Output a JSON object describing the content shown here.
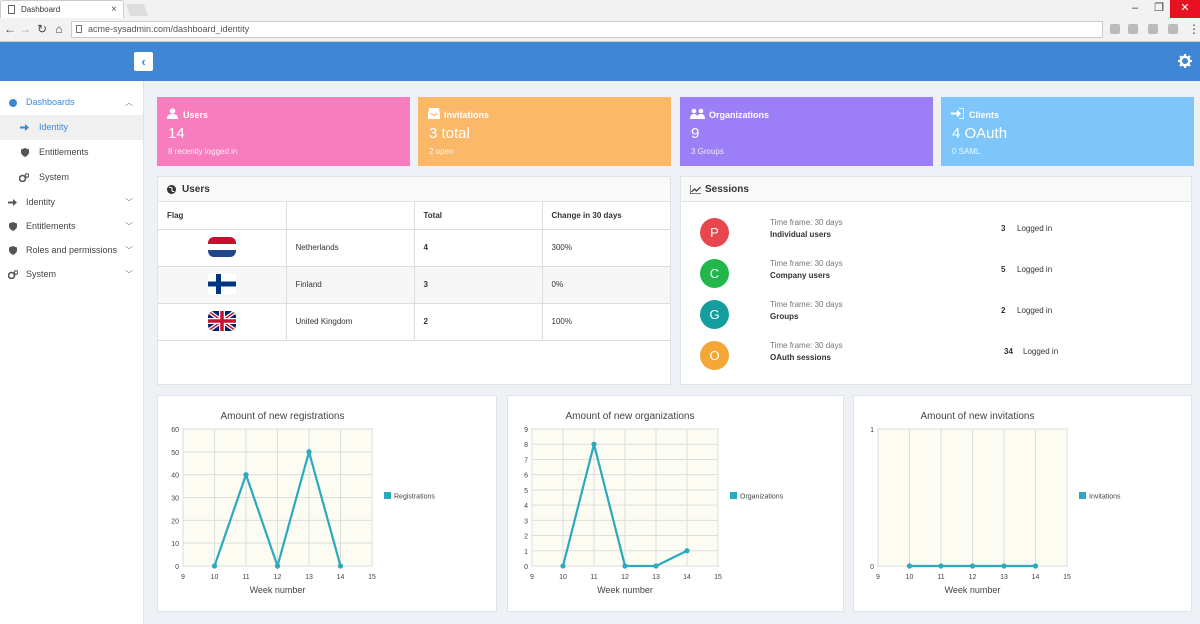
{
  "browser": {
    "tab_title": "Dashboard",
    "url": "acme-sysadmin.com/dashboard_identity"
  },
  "sidebar": {
    "items": [
      {
        "label": "Dashboards",
        "icon": "dashboard-icon",
        "expanded": true
      },
      {
        "label": "Identity",
        "icon": "sign-in-icon",
        "active": true
      },
      {
        "label": "Entitlements",
        "icon": "shield-icon"
      },
      {
        "label": "System",
        "icon": "cogs-icon"
      },
      {
        "label": "Identity",
        "icon": "sign-in-icon"
      },
      {
        "label": "Entitlements",
        "icon": "shield-icon"
      },
      {
        "label": "Roles and permissions",
        "icon": "shield-icon"
      },
      {
        "label": "System",
        "icon": "cogs-icon"
      }
    ]
  },
  "stats": [
    {
      "title": "Users",
      "value": "14",
      "sub": "8 recently logged in",
      "color": "#f77dbf",
      "icon": "user-icon"
    },
    {
      "title": "Invitations",
      "value": "3 total",
      "sub": "2 open",
      "color": "#fbb868",
      "icon": "inbox-icon"
    },
    {
      "title": "Organizations",
      "value": "9",
      "sub": "3 Groups",
      "color": "#9c7ef7",
      "icon": "users-icon"
    },
    {
      "title": "Clients",
      "value": "4 OAuth",
      "sub": "0 SAML",
      "color": "#7ec6f9",
      "icon": "sign-in-icon"
    }
  ],
  "users_panel": {
    "title": "Users",
    "headers": [
      "Flag",
      "",
      "Total",
      "Change in 30 days"
    ],
    "rows": [
      {
        "country": "Netherlands",
        "total": "4",
        "change": "300%"
      },
      {
        "country": "Finland",
        "total": "3",
        "change": "0%"
      },
      {
        "country": "United Kingdom",
        "total": "2",
        "change": "100%"
      }
    ]
  },
  "sessions_panel": {
    "title": "Sessions",
    "rows": [
      {
        "initial": "P",
        "color": "#e8474f",
        "timeframe": "Time frame: 30 days",
        "name": "Individual users",
        "count": "3",
        "label": "Logged in"
      },
      {
        "initial": "C",
        "color": "#21b74d",
        "timeframe": "Time frame: 30 days",
        "name": "Company users",
        "count": "5",
        "label": "Logged in"
      },
      {
        "initial": "G",
        "color": "#159e9e",
        "timeframe": "Time frame: 30 days",
        "name": "Groups",
        "count": "2",
        "label": "Logged in"
      },
      {
        "initial": "O",
        "color": "#f4a637",
        "timeframe": "Time frame: 30 days",
        "name": "OAuth sessions",
        "count": "34",
        "label": "Logged in"
      }
    ]
  },
  "chart_data": [
    {
      "type": "line",
      "title": "Amount of new registrations",
      "xlabel": "Week number",
      "ylabel": "",
      "x": [
        10,
        11,
        12,
        13,
        14
      ],
      "series": [
        {
          "name": "Registrations",
          "values": [
            0,
            40,
            0,
            50,
            0
          ]
        }
      ],
      "xlim": [
        9,
        15
      ],
      "ylim": [
        0,
        60
      ],
      "yticks": [
        0,
        10,
        20,
        30,
        40,
        50,
        60
      ],
      "legend": "right",
      "color": "#2aa9bf"
    },
    {
      "type": "line",
      "title": "Amount of new organizations",
      "xlabel": "Week number",
      "ylabel": "",
      "x": [
        10,
        11,
        12,
        13,
        14
      ],
      "series": [
        {
          "name": "Organizations",
          "values": [
            0,
            8,
            0,
            0,
            1
          ]
        }
      ],
      "xlim": [
        9,
        15
      ],
      "ylim": [
        0,
        9
      ],
      "yticks": [
        0,
        1,
        2,
        3,
        4,
        5,
        6,
        7,
        8,
        9
      ],
      "legend": "right",
      "color": "#2aa9bf"
    },
    {
      "type": "line",
      "title": "Amount of new invitations",
      "xlabel": "Week number",
      "ylabel": "",
      "x": [
        10,
        11,
        12,
        13,
        14
      ],
      "series": [
        {
          "name": "Invitations",
          "values": [
            0,
            0,
            0,
            0,
            0
          ]
        }
      ],
      "xlim": [
        9,
        15
      ],
      "ylim": [
        0,
        1
      ],
      "yticks": [
        0,
        1
      ],
      "legend": "right",
      "color": "#2aa9bf"
    }
  ]
}
